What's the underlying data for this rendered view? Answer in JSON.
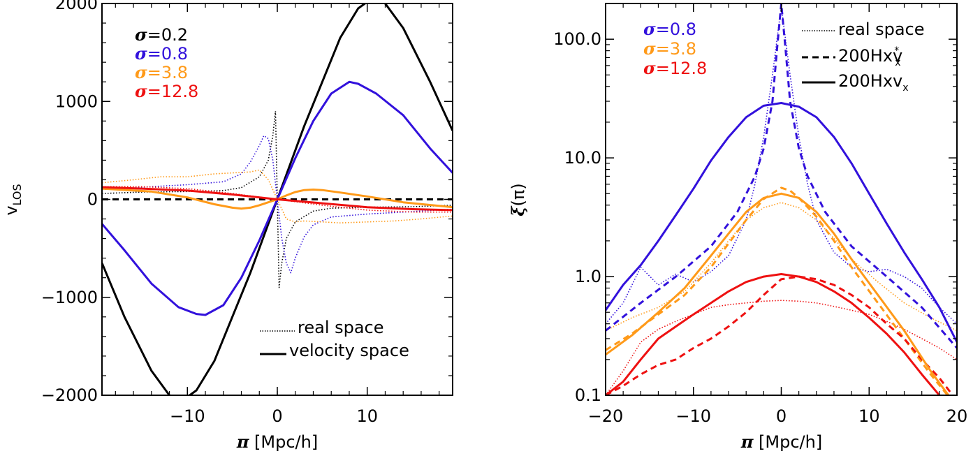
{
  "colors": {
    "black": "#000000",
    "blue": "#3211dc",
    "orange": "#ff9a19",
    "red": "#ee1111"
  },
  "chart_data": [
    {
      "type": "line",
      "xlabel_symbol": "π",
      "xlabel_unit": " [Mpc/h]",
      "ylabel_main": "v",
      "ylabel_sub": "LOS",
      "xlim": [
        -19.5,
        19.5
      ],
      "ylim": [
        -2000,
        2000
      ],
      "x_ticks": [
        -10,
        0,
        10
      ],
      "x_tick_labels": [
        "−10",
        "0",
        "10"
      ],
      "y_ticks": [
        -2000,
        -1000,
        0,
        1000,
        2000
      ],
      "y_tick_labels": [
        "−2000",
        "−1000",
        "0",
        "1000",
        "2000"
      ],
      "legend_sigma": [
        {
          "symbol": "σ",
          "value": "=0.2",
          "color": "#000000"
        },
        {
          "symbol": "σ",
          "value": "=0.8",
          "color": "#3211dc"
        },
        {
          "symbol": "σ",
          "value": "=3.8",
          "color": "#ff9a19"
        },
        {
          "symbol": "σ",
          "value": "=12.8",
          "color": "#ee1111"
        }
      ],
      "legend_style": [
        {
          "label": "real space",
          "style": "dotted"
        },
        {
          "label": "velocity space",
          "style": "solid"
        }
      ],
      "series": [
        {
          "sigma": "0.2",
          "space": "velocity",
          "color": "#000000",
          "style": "solid",
          "x": [
            -19.5,
            -17,
            -14,
            -12,
            -10.5,
            -9,
            -7,
            -5,
            -3,
            -1,
            0,
            1,
            3,
            5,
            7,
            9,
            10.5,
            12,
            14,
            17,
            19.5
          ],
          "y": [
            -650,
            -1200,
            -1750,
            -2000,
            -2050,
            -1950,
            -1650,
            -1200,
            -750,
            -250,
            0,
            250,
            750,
            1200,
            1650,
            1950,
            2050,
            2000,
            1750,
            1200,
            700
          ]
        },
        {
          "sigma": "0.8",
          "space": "velocity",
          "color": "#3211dc",
          "style": "solid",
          "x": [
            -19.5,
            -17,
            -14,
            -11,
            -9,
            -8,
            -6,
            -4,
            -2,
            0,
            2,
            4,
            6,
            8,
            9,
            11,
            14,
            17,
            19.5
          ],
          "y": [
            -250,
            -520,
            -860,
            -1100,
            -1170,
            -1180,
            -1080,
            -800,
            -420,
            0,
            420,
            800,
            1080,
            1200,
            1180,
            1080,
            860,
            520,
            270
          ]
        },
        {
          "sigma": "3.8",
          "space": "velocity",
          "color": "#ff9a19",
          "style": "solid",
          "x": [
            -19.5,
            -14,
            -10,
            -7,
            -5,
            -4,
            -3,
            -2,
            -1,
            0,
            1,
            2,
            3,
            4,
            5,
            7,
            10,
            14,
            19.5
          ],
          "y": [
            110,
            80,
            20,
            -50,
            -85,
            -95,
            -85,
            -60,
            -30,
            0,
            40,
            75,
            95,
            100,
            95,
            70,
            30,
            -30,
            -80
          ]
        },
        {
          "sigma": "12.8",
          "space": "velocity",
          "color": "#ee1111",
          "style": "solid",
          "x": [
            -19.5,
            -15,
            -10,
            -5,
            0,
            5,
            10,
            15,
            19.5
          ],
          "y": [
            125,
            110,
            90,
            50,
            0,
            -40,
            -80,
            -100,
            -110
          ]
        },
        {
          "sigma": "12.8",
          "space": "velocity-baseline",
          "color": "#000000",
          "style": "dashed",
          "x": [
            -19.5,
            19.5
          ],
          "y": [
            0,
            0
          ]
        },
        {
          "sigma": "0.2",
          "space": "real",
          "color": "#000000",
          "style": "dotted",
          "x": [
            -19.5,
            -15,
            -10,
            -6,
            -4,
            -2,
            -1,
            -0.5,
            -0.2,
            0,
            0.2,
            0.5,
            1,
            2,
            4,
            6,
            10,
            15,
            19.5
          ],
          "y": [
            60,
            75,
            80,
            90,
            120,
            230,
            400,
            650,
            900,
            0,
            -900,
            -650,
            -400,
            -230,
            -120,
            -90,
            -80,
            -75,
            -60
          ]
        },
        {
          "sigma": "0.8",
          "space": "real",
          "color": "#3211dc",
          "style": "dotted",
          "x": [
            -19.5,
            -14,
            -10,
            -6,
            -4,
            -3,
            -2,
            -1.5,
            -1,
            -0.5,
            0,
            0.5,
            1,
            1.5,
            2,
            3,
            4,
            6,
            10,
            14,
            19.5
          ],
          "y": [
            100,
            130,
            150,
            180,
            260,
            380,
            550,
            650,
            620,
            400,
            0,
            -400,
            -650,
            -750,
            -600,
            -380,
            -260,
            -180,
            -150,
            -130,
            -100
          ]
        },
        {
          "sigma": "3.8",
          "space": "real",
          "color": "#ff9a19",
          "style": "dotted",
          "x": [
            -19.5,
            -16,
            -13,
            -10,
            -7,
            -5,
            -3,
            -2,
            -1,
            0,
            1,
            2,
            3,
            5,
            7,
            10,
            13,
            16,
            19.5
          ],
          "y": [
            170,
            200,
            230,
            230,
            260,
            270,
            280,
            300,
            200,
            0,
            -200,
            -230,
            -220,
            -230,
            -240,
            -230,
            -220,
            -200,
            -170
          ]
        },
        {
          "sigma": "12.8",
          "space": "real",
          "color": "#ee1111",
          "style": "dotted",
          "x": [
            -19.5,
            -15,
            -10,
            -5,
            0,
            5,
            10,
            15,
            19.5
          ],
          "y": [
            130,
            130,
            110,
            60,
            0,
            -60,
            -110,
            -130,
            -130
          ]
        }
      ]
    },
    {
      "type": "line",
      "scale_y": "log",
      "xlabel_symbol": "π",
      "xlabel_unit": " [Mpc/h]",
      "ylabel_symbol": "ξ",
      "ylabel_rest": "(π)",
      "xlim": [
        -20,
        20
      ],
      "ylim": [
        0.1,
        200
      ],
      "x_ticks": [
        -20,
        -10,
        0,
        10,
        20
      ],
      "x_tick_labels": [
        "−20",
        "−10",
        "0",
        "10",
        "20"
      ],
      "y_ticks": [
        0.1,
        1,
        10,
        100
      ],
      "y_tick_labels": [
        "0.1",
        "1.0",
        "10.0",
        "100.0"
      ],
      "legend_sigma": [
        {
          "symbol": "σ",
          "value": "=0.8",
          "color": "#3211dc"
        },
        {
          "symbol": "σ",
          "value": "=3.8",
          "color": "#ff9a19"
        },
        {
          "symbol": "σ",
          "value": "=12.8",
          "color": "#ee1111"
        }
      ],
      "legend_style": [
        {
          "label": "real space",
          "style": "dotted",
          "sup": "",
          "sub": ""
        },
        {
          "label": "200Hxv",
          "style": "dashed",
          "sup": "*",
          "sub": "x"
        },
        {
          "label": "200Hxv",
          "style": "solid",
          "sup": "",
          "sub": "x"
        }
      ],
      "series": [
        {
          "sigma": "0.8",
          "space": "velocity",
          "color": "#3211dc",
          "style": "solid",
          "x": [
            -20,
            -18,
            -16,
            -14,
            -12,
            -10,
            -8,
            -6,
            -4,
            -2,
            0,
            2,
            4,
            6,
            8,
            10,
            12,
            14,
            16,
            18,
            20
          ],
          "y": [
            0.52,
            0.85,
            1.25,
            2.0,
            3.3,
            5.5,
            9.5,
            15,
            22,
            27.5,
            29,
            27,
            22,
            15,
            9,
            5,
            2.8,
            1.6,
            0.95,
            0.55,
            0.28
          ]
        },
        {
          "sigma": "0.8",
          "space": "200Hxv*",
          "color": "#3211dc",
          "style": "dashed",
          "x": [
            -20,
            -16,
            -12,
            -8,
            -5,
            -3,
            -2,
            -1,
            -0.5,
            0,
            0.5,
            1,
            2,
            3,
            5,
            8,
            12,
            16,
            20
          ],
          "y": [
            0.35,
            0.6,
            1.0,
            1.8,
            3.5,
            7,
            12,
            30,
            80,
            200,
            80,
            30,
            12,
            7,
            3.5,
            1.8,
            1.0,
            0.55,
            0.25
          ]
        },
        {
          "sigma": "0.8",
          "space": "real",
          "color": "#3211dc",
          "style": "dotted",
          "x": [
            -20,
            -18,
            -16,
            -14,
            -12,
            -10,
            -8,
            -6,
            -4,
            -3,
            -2,
            -1,
            0,
            1,
            2,
            3,
            4,
            6,
            8,
            10,
            12,
            14,
            16,
            18,
            20
          ],
          "y": [
            0.4,
            0.6,
            1.2,
            0.85,
            1.05,
            0.9,
            1.1,
            1.5,
            3,
            6,
            15,
            50,
            190,
            50,
            15,
            6,
            3,
            1.6,
            1.2,
            1.1,
            1.15,
            1.0,
            0.8,
            0.55,
            0.4
          ]
        },
        {
          "sigma": "3.8",
          "space": "velocity",
          "color": "#ff9a19",
          "style": "solid",
          "x": [
            -20,
            -17,
            -14,
            -11,
            -8,
            -6,
            -4,
            -2,
            0,
            2,
            4,
            6,
            8,
            11,
            14,
            17,
            20
          ],
          "y": [
            0.22,
            0.32,
            0.5,
            0.8,
            1.5,
            2.3,
            3.5,
            4.6,
            5,
            4.6,
            3.5,
            2.3,
            1.4,
            0.7,
            0.35,
            0.16,
            0.08
          ]
        },
        {
          "sigma": "3.8",
          "space": "200Hxv*",
          "color": "#ff9a19",
          "style": "dashed",
          "x": [
            -20,
            -17,
            -14,
            -11,
            -8,
            -6,
            -4,
            -2,
            0,
            1,
            2,
            4,
            6,
            8,
            11,
            14,
            17,
            20
          ],
          "y": [
            0.24,
            0.33,
            0.48,
            0.7,
            1.2,
            1.9,
            3,
            4.5,
            5.6,
            5.3,
            4.6,
            3.2,
            2,
            1.2,
            0.6,
            0.3,
            0.15,
            0.08
          ]
        },
        {
          "sigma": "3.8",
          "space": "real",
          "color": "#ff9a19",
          "style": "dotted",
          "x": [
            -20,
            -17,
            -14,
            -11,
            -8,
            -6,
            -4,
            -2,
            0,
            2,
            4,
            6,
            8,
            11,
            14,
            17,
            20
          ],
          "y": [
            0.35,
            0.45,
            0.55,
            0.75,
            1.3,
            2,
            3,
            3.8,
            4.2,
            3.8,
            3,
            2.1,
            1.4,
            0.9,
            0.6,
            0.45,
            0.35
          ]
        },
        {
          "sigma": "12.8",
          "space": "velocity",
          "color": "#ee1111",
          "style": "solid",
          "x": [
            -20,
            -18,
            -16,
            -14,
            -12,
            -10,
            -8,
            -6,
            -4,
            -2,
            0,
            2,
            4,
            6,
            8,
            10,
            12,
            14,
            16,
            18,
            20
          ],
          "y": [
            0.1,
            0.13,
            0.2,
            0.3,
            0.38,
            0.48,
            0.6,
            0.75,
            0.9,
            1.0,
            1.05,
            1.0,
            0.9,
            0.75,
            0.6,
            0.45,
            0.33,
            0.23,
            0.15,
            0.1,
            0.07
          ]
        },
        {
          "sigma": "12.8",
          "space": "200Hxv*",
          "color": "#ee1111",
          "style": "dashed",
          "x": [
            -20,
            -18,
            -16,
            -14,
            -12,
            -10,
            -8,
            -6,
            -4,
            -2,
            0,
            2,
            4,
            6,
            8,
            10,
            12,
            14,
            16,
            18,
            20
          ],
          "y": [
            0.1,
            0.12,
            0.15,
            0.18,
            0.2,
            0.25,
            0.3,
            0.38,
            0.5,
            0.7,
            0.95,
            1.0,
            0.95,
            0.85,
            0.7,
            0.55,
            0.4,
            0.3,
            0.2,
            0.14,
            0.09
          ]
        },
        {
          "sigma": "12.8",
          "space": "real",
          "color": "#ee1111",
          "style": "dotted",
          "x": [
            -20,
            -18,
            -16,
            -14,
            -12,
            -10,
            -8,
            -6,
            -4,
            -2,
            0,
            2,
            4,
            6,
            8,
            10,
            12,
            14,
            16,
            18,
            20
          ],
          "y": [
            0.1,
            0.16,
            0.28,
            0.36,
            0.42,
            0.48,
            0.55,
            0.58,
            0.6,
            0.62,
            0.63,
            0.62,
            0.6,
            0.56,
            0.52,
            0.48,
            0.42,
            0.36,
            0.3,
            0.25,
            0.2
          ]
        }
      ]
    }
  ]
}
